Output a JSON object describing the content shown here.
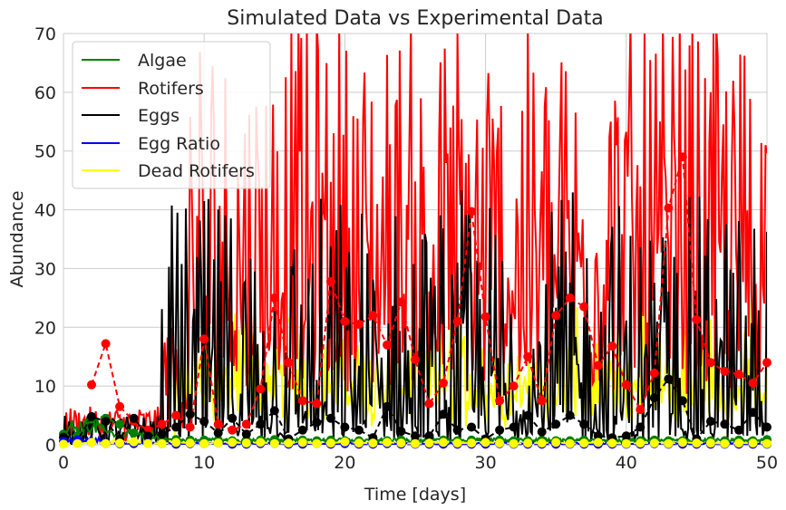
{
  "chart_data": {
    "type": "line",
    "title": "Simulated Data vs Experimental Data",
    "xlabel": "Time [days]",
    "ylabel": "Abundance",
    "xlim": [
      0,
      50
    ],
    "ylim": [
      0,
      70
    ],
    "x_ticks": [
      "0",
      "10",
      "20",
      "30",
      "40",
      "50"
    ],
    "y_ticks": [
      "0",
      "10",
      "20",
      "30",
      "40",
      "50",
      "60",
      "70"
    ],
    "grid": true,
    "legend_position": "top-left",
    "series": [
      {
        "name": "Algae",
        "color": "#008000",
        "style": "solid"
      },
      {
        "name": "Rotifers",
        "color": "#ff0000",
        "style": "solid"
      },
      {
        "name": "Eggs",
        "color": "#000000",
        "style": "solid"
      },
      {
        "name": "Egg Ratio",
        "color": "#0000ff",
        "style": "solid"
      },
      {
        "name": "Dead Rotifers",
        "color": "#ffff00",
        "style": "solid"
      }
    ],
    "experimental": [
      {
        "series": "Algae",
        "color": "#008000",
        "x": [
          0,
          1,
          2,
          3,
          4,
          5,
          6,
          7,
          8,
          9,
          10,
          11,
          12,
          13,
          14,
          15,
          16,
          17,
          18,
          19,
          20,
          21,
          22,
          23,
          24,
          25,
          26,
          27,
          28,
          29,
          30,
          31,
          32,
          33,
          34,
          35,
          36,
          37,
          38,
          39,
          40,
          41,
          42,
          43,
          44,
          45,
          46,
          47,
          48,
          49,
          50
        ],
        "y": [
          1.8,
          1.5,
          4.4,
          4.5,
          3.5,
          2.0,
          1.2,
          1.0,
          0.9,
          0.8,
          0.8,
          0.8,
          0.7,
          0.8,
          0.8,
          0.9,
          0.8,
          0.8,
          0.7,
          0.8,
          0.7,
          0.7,
          0.8,
          0.7,
          0.8,
          0.7,
          0.8,
          0.8,
          0.7,
          0.8,
          0.7,
          0.8,
          0.7,
          0.7,
          0.8,
          0.7,
          0.7,
          0.8,
          0.7,
          0.8,
          0.7,
          0.7,
          0.8,
          0.7,
          0.7,
          0.8,
          0.7,
          0.7,
          0.8,
          0.7,
          0.9
        ]
      },
      {
        "series": "Rotifers",
        "color": "#ff0000",
        "x": [
          2,
          3,
          4,
          5,
          6,
          7,
          8,
          9,
          10,
          11,
          12,
          13,
          14,
          15,
          16,
          17,
          18,
          19,
          20,
          21,
          22,
          23,
          24,
          25,
          26,
          27,
          28,
          29,
          30,
          31,
          32,
          33,
          34,
          35,
          36,
          37,
          38,
          39,
          40,
          41,
          42,
          43,
          44,
          45,
          46,
          47,
          48,
          49,
          50
        ],
        "y": [
          10.2,
          17.2,
          6.5,
          4.0,
          2.5,
          3.5,
          5.0,
          3.0,
          18.0,
          3.5,
          2.5,
          3.5,
          9.5,
          25.0,
          14.0,
          7.5,
          7.0,
          27.8,
          21.0,
          20.5,
          22.0,
          17.0,
          24.3,
          14.5,
          7.0,
          10.5,
          21.0,
          39.7,
          21.8,
          7.5,
          10.0,
          15.0,
          7.5,
          22.0,
          25.0,
          23.5,
          13.5,
          16.8,
          10.2,
          6.0,
          12.2,
          40.3,
          49.0,
          21.3,
          14.0,
          12.5,
          12.0,
          10.5,
          14.0
        ]
      },
      {
        "series": "Eggs",
        "color": "#000000",
        "x": [
          0,
          1,
          2,
          3,
          4,
          5,
          6,
          7,
          8,
          9,
          10,
          11,
          12,
          13,
          14,
          15,
          16,
          17,
          18,
          19,
          20,
          21,
          22,
          23,
          24,
          25,
          26,
          27,
          28,
          29,
          30,
          31,
          32,
          33,
          34,
          35,
          36,
          37,
          38,
          39,
          40,
          41,
          42,
          43,
          44,
          45,
          46,
          47,
          48,
          49,
          50
        ],
        "y": [
          1.3,
          0.8,
          4.8,
          4.0,
          1.0,
          4.5,
          1.5,
          1.8,
          3.0,
          5.2,
          4.0,
          2.0,
          4.5,
          1.8,
          3.5,
          5.8,
          1.0,
          2.5,
          3.8,
          4.5,
          3.0,
          2.5,
          1.2,
          6.5,
          2.3,
          1.5,
          1.5,
          5.2,
          2.5,
          3.0,
          1.0,
          2.5,
          3.0,
          5.0,
          2.2,
          3.5,
          5.0,
          3.5,
          1.5,
          1.2,
          1.5,
          3.0,
          8.0,
          11.2,
          7.5,
          1.0,
          4.0,
          3.5,
          2.5,
          5.5,
          3.0
        ]
      },
      {
        "series": "Egg Ratio",
        "color": "#0000ff",
        "x": [
          0,
          1,
          2,
          3,
          4,
          5,
          6,
          7,
          8,
          9,
          10,
          11,
          12,
          13,
          14,
          15,
          16,
          17,
          18,
          19,
          20,
          21,
          22,
          23,
          24,
          25,
          26,
          27,
          28,
          29,
          30,
          31,
          32,
          33,
          34,
          35,
          36,
          37,
          38,
          39,
          40,
          41,
          42,
          43,
          44,
          45,
          46,
          47,
          48,
          49,
          50
        ],
        "y": [
          0.6,
          0.8,
          0.4,
          0.2,
          0.2,
          0.2,
          0.3,
          0.2,
          0.1,
          0.2,
          0.2,
          0.3,
          0.1,
          0.1,
          0.2,
          0.2,
          0.1,
          0.1,
          0.2,
          0.1,
          0.2,
          0.1,
          0.1,
          0.2,
          0.1,
          0.1,
          0.1,
          0.1,
          0.1,
          0.1,
          0.1,
          0.2,
          0.1,
          0.1,
          0.1,
          0.1,
          0.1,
          0.1,
          0.1,
          0.1,
          0.1,
          0.1,
          0.2,
          0.1,
          0.1,
          0.1,
          0.1,
          0.1,
          0.1,
          0.1,
          0.1
        ]
      },
      {
        "series": "Dead Rotifers",
        "color": "#ffff00",
        "x": [
          0,
          1,
          2,
          3,
          4,
          5,
          6,
          7,
          8,
          9,
          10,
          11,
          12,
          13,
          14,
          15,
          16,
          17,
          18,
          19,
          20,
          21,
          22,
          23,
          24,
          25,
          26,
          27,
          28,
          29,
          30,
          31,
          32,
          33,
          34,
          35,
          36,
          37,
          38,
          39,
          40,
          41,
          42,
          43,
          44,
          45,
          46,
          47,
          48,
          49,
          50
        ],
        "y": [
          0.1,
          0.2,
          0.4,
          0.2,
          0.3,
          0.5,
          0.2,
          0.2,
          0.4,
          0.3,
          0.2,
          0.3,
          0.4,
          0.3,
          0.4,
          0.2,
          0.3,
          0.4,
          0.2,
          0.3,
          0.5,
          0.3,
          0.3,
          0.4,
          0.3,
          0.2,
          0.3,
          0.4,
          0.3,
          0.3,
          0.4,
          0.3,
          0.2,
          0.3,
          0.3,
          0.4,
          0.2,
          0.3,
          0.4,
          0.3,
          0.2,
          0.3,
          0.3,
          0.2,
          0.4,
          0.3,
          0.3,
          0.2,
          0.3,
          0.3,
          0.2
        ]
      }
    ]
  }
}
